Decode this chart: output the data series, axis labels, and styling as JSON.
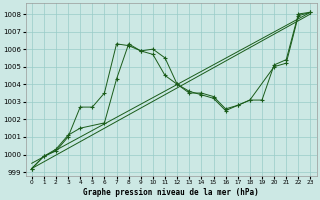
{
  "xlabel": "Graphe pression niveau de la mer (hPa)",
  "bg_color": "#cce8e4",
  "grid_color": "#99ccc8",
  "line_color": "#1a5c1a",
  "xlim": [
    -0.5,
    23.5
  ],
  "ylim": [
    998.8,
    1008.6
  ],
  "yticks": [
    999,
    1000,
    1001,
    1002,
    1003,
    1004,
    1005,
    1006,
    1007,
    1008
  ],
  "xticks": [
    0,
    1,
    2,
    3,
    4,
    5,
    6,
    7,
    8,
    9,
    10,
    11,
    12,
    13,
    14,
    15,
    16,
    17,
    18,
    19,
    20,
    21,
    22,
    23
  ],
  "series_straight": {
    "x": [
      0,
      23
    ],
    "y": [
      999.2,
      1008.0
    ]
  },
  "series_straight2": {
    "x": [
      0,
      23
    ],
    "y": [
      999.5,
      1008.1
    ]
  },
  "series_jagged1": {
    "x": [
      0,
      1,
      2,
      3,
      4,
      5,
      6,
      7,
      8,
      9,
      10,
      11,
      12,
      13,
      14,
      15,
      16,
      17,
      18,
      20,
      21,
      22,
      23
    ],
    "y": [
      999.2,
      999.9,
      1000.2,
      1001.0,
      1002.7,
      1002.7,
      1003.5,
      1006.3,
      1006.2,
      1005.9,
      1005.7,
      1004.5,
      1004.0,
      1003.6,
      1003.4,
      1003.2,
      1002.5,
      1002.8,
      1003.1,
      1005.0,
      1005.2,
      1007.9,
      1008.1
    ]
  },
  "series_jagged2": {
    "x": [
      0,
      1,
      2,
      3,
      4,
      6,
      7,
      8,
      9,
      10,
      11,
      12,
      13,
      14,
      15,
      16,
      17,
      18,
      19,
      20,
      21,
      22,
      23
    ],
    "y": [
      999.2,
      999.9,
      1000.3,
      1001.1,
      1001.5,
      1001.8,
      1004.3,
      1006.3,
      1005.9,
      1006.0,
      1005.5,
      1004.0,
      1003.5,
      1003.5,
      1003.3,
      1002.6,
      1002.8,
      1003.1,
      1003.1,
      1005.1,
      1005.4,
      1008.0,
      1008.1
    ]
  }
}
